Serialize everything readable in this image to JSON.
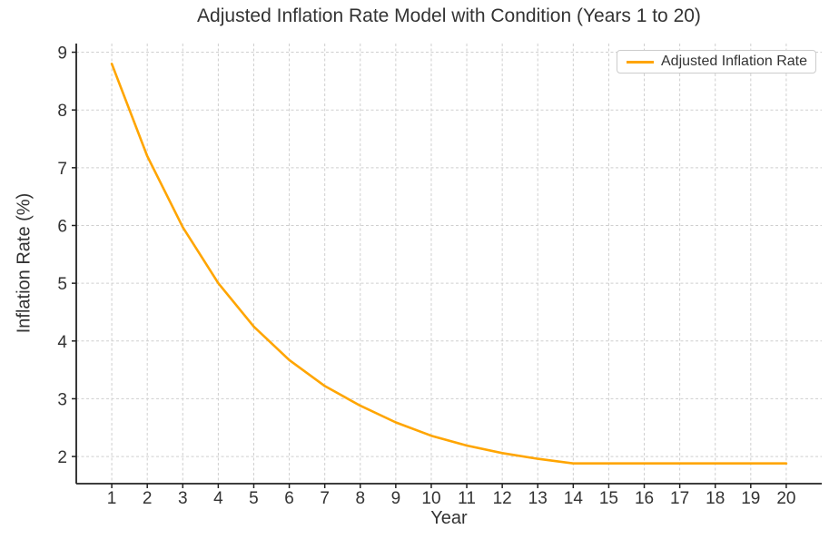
{
  "chart_data": {
    "type": "line",
    "title": "Adjusted Inflation Rate Model with Condition (Years 1 to 20)",
    "xlabel": "Year",
    "ylabel": "Inflation Rate (%)",
    "legend_label": "Adjusted Inflation Rate",
    "legend_position": "upper right",
    "grid": true,
    "grid_style": "dashed",
    "x": [
      1,
      2,
      3,
      4,
      5,
      6,
      7,
      8,
      9,
      10,
      11,
      12,
      13,
      14,
      15,
      16,
      17,
      18,
      19,
      20
    ],
    "series": [
      {
        "name": "Adjusted Inflation Rate",
        "color": "#FFA500",
        "values": [
          8.8,
          7.2,
          5.97,
          5.0,
          4.25,
          3.67,
          3.22,
          2.88,
          2.59,
          2.36,
          2.19,
          2.06,
          1.96,
          1.88,
          1.88,
          1.88,
          1.88,
          1.88,
          1.88,
          1.88
        ]
      }
    ],
    "x_ticks": [
      1,
      2,
      3,
      4,
      5,
      6,
      7,
      8,
      9,
      10,
      11,
      12,
      13,
      14,
      15,
      16,
      17,
      18,
      19,
      20
    ],
    "y_ticks": [
      2,
      3,
      4,
      5,
      6,
      7,
      8,
      9
    ],
    "xlim": [
      0,
      21
    ],
    "ylim": [
      1.53,
      9.15
    ],
    "colors": {
      "line": "#FFA500",
      "grid": "#cfcfcf",
      "spine": "#222222",
      "text": "#333333",
      "background": "#ffffff"
    }
  }
}
